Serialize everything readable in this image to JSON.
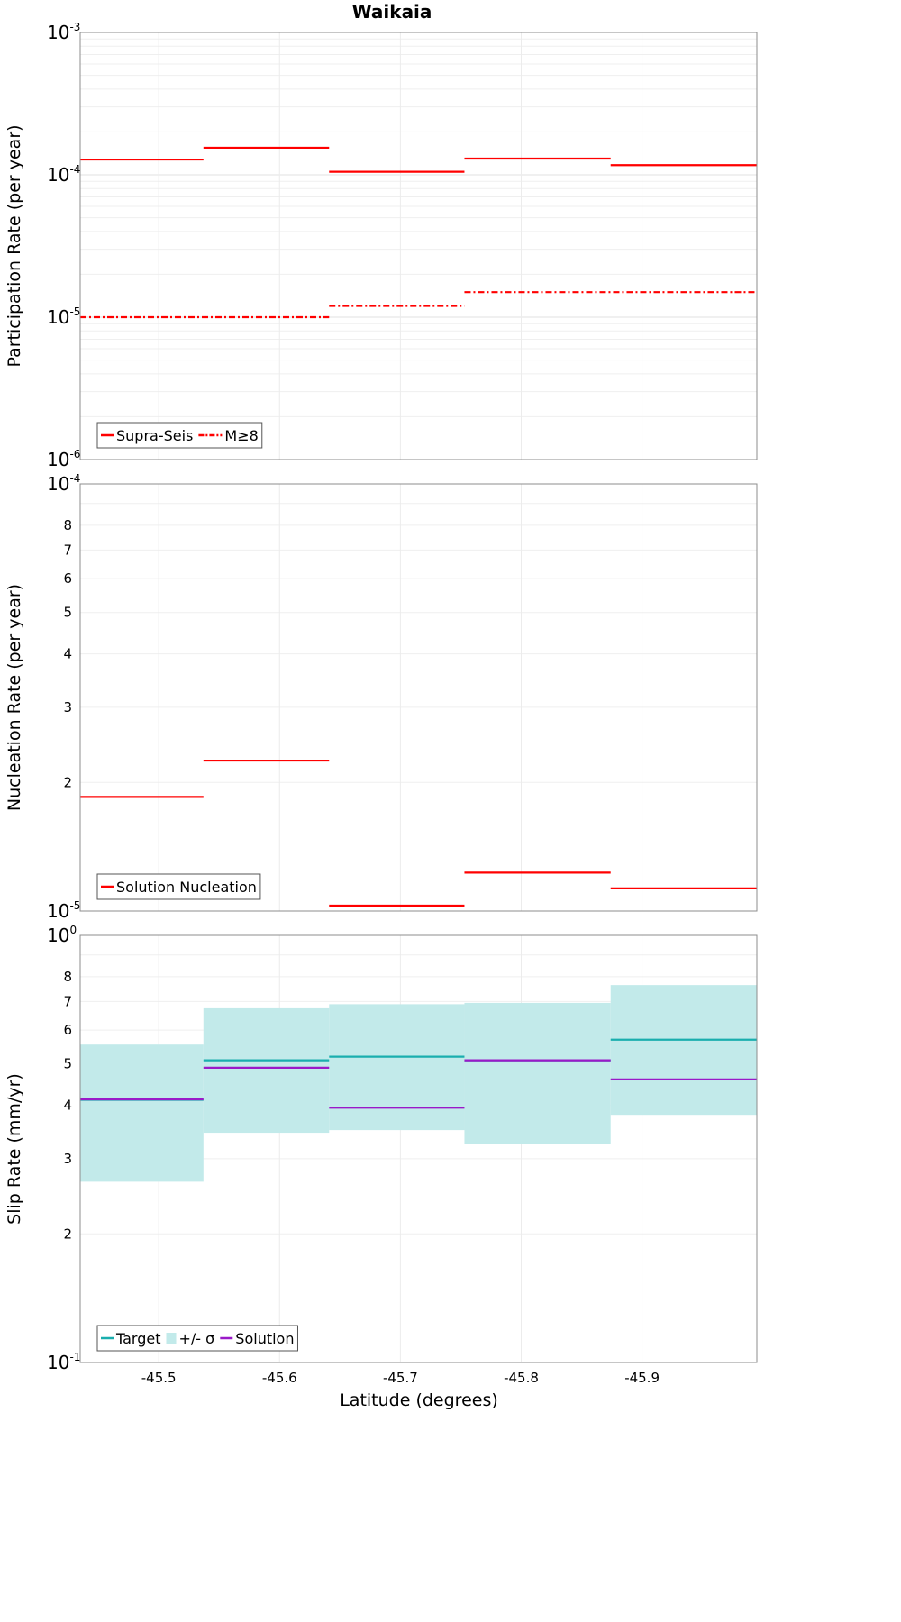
{
  "chart_data": [
    {
      "type": "line",
      "title": "Waikaia",
      "ylabel": "Participation Rate (per year)",
      "xlabel": "",
      "y_scale": "log",
      "ylim": [
        1e-06,
        0.001
      ],
      "xlim": [
        -45.435,
        -45.995
      ],
      "x_ticks": [
        "-45.5",
        "-45.6",
        "-45.7",
        "-45.8",
        "-45.9"
      ],
      "y_major_labels": [
        {
          "base": "10",
          "exp": "-6"
        },
        {
          "base": "10",
          "exp": "-5"
        },
        {
          "base": "10",
          "exp": "-4"
        },
        {
          "base": "10",
          "exp": "-3"
        }
      ],
      "grid": true,
      "legend_position": "bottom-left",
      "legend": [
        "Supra-Seis",
        "M≥8"
      ],
      "series": [
        {
          "name": "Supra-Seis",
          "color": "#ff0000",
          "style": "solid",
          "segments": [
            {
              "x0": -45.435,
              "x1": -45.537,
              "y": 0.000128
            },
            {
              "x0": -45.537,
              "x1": -45.641,
              "y": 0.000155
            },
            {
              "x0": -45.641,
              "x1": -45.753,
              "y": 0.000105
            },
            {
              "x0": -45.753,
              "x1": -45.874,
              "y": 0.00013
            },
            {
              "x0": -45.874,
              "x1": -45.995,
              "y": 0.000117
            }
          ]
        },
        {
          "name": "M≥8",
          "color": "#ff0000",
          "style": "dashdot",
          "segments": [
            {
              "x0": -45.435,
              "x1": -45.641,
              "y": 1e-05
            },
            {
              "x0": -45.641,
              "x1": -45.753,
              "y": 1.2e-05
            },
            {
              "x0": -45.753,
              "x1": -45.995,
              "y": 1.5e-05
            }
          ]
        }
      ]
    },
    {
      "type": "line",
      "ylabel": "Nucleation Rate (per year)",
      "xlabel": "",
      "y_scale": "log",
      "ylim": [
        1e-05,
        0.0001
      ],
      "xlim": [
        -45.435,
        -45.995
      ],
      "x_ticks": [
        "-45.5",
        "-45.6",
        "-45.7",
        "-45.8",
        "-45.9"
      ],
      "y_major_labels": [
        {
          "base": "10",
          "exp": "-5"
        },
        {
          "base": "10",
          "exp": "-4"
        }
      ],
      "y_minor_labels": [
        "2",
        "3",
        "4",
        "5",
        "6",
        "7",
        "8"
      ],
      "grid": true,
      "legend_position": "bottom-left",
      "legend": [
        "Solution Nucleation"
      ],
      "series": [
        {
          "name": "Solution Nucleation",
          "color": "#ff0000",
          "style": "solid",
          "segments": [
            {
              "x0": -45.435,
              "x1": -45.537,
              "y": 1.85e-05
            },
            {
              "x0": -45.537,
              "x1": -45.641,
              "y": 2.25e-05
            },
            {
              "x0": -45.641,
              "x1": -45.753,
              "y": 1.03e-05
            },
            {
              "x0": -45.753,
              "x1": -45.874,
              "y": 1.23e-05
            },
            {
              "x0": -45.874,
              "x1": -45.995,
              "y": 1.13e-05
            }
          ]
        }
      ]
    },
    {
      "type": "area",
      "ylabel": "Slip Rate (mm/yr)",
      "xlabel": "Latitude (degrees)",
      "y_scale": "log",
      "ylim": [
        0.1,
        1.0
      ],
      "xlim": [
        -45.435,
        -45.995
      ],
      "x_ticks": [
        "-45.5",
        "-45.6",
        "-45.7",
        "-45.8",
        "-45.9"
      ],
      "y_major_labels": [
        {
          "base": "10",
          "exp": "-1"
        },
        {
          "base": "10",
          "exp": "0"
        }
      ],
      "y_minor_labels": [
        "2",
        "3",
        "4",
        "5",
        "6",
        "7",
        "8"
      ],
      "grid": true,
      "legend_position": "bottom-left",
      "legend": [
        "Target",
        "+/- σ",
        "Solution"
      ],
      "band": {
        "name": "+/- σ",
        "color": "#c2eaea",
        "segments": [
          {
            "x0": -45.435,
            "x1": -45.537,
            "lo": 0.265,
            "hi": 0.555
          },
          {
            "x0": -45.537,
            "x1": -45.641,
            "lo": 0.345,
            "hi": 0.675
          },
          {
            "x0": -45.641,
            "x1": -45.753,
            "lo": 0.35,
            "hi": 0.69
          },
          {
            "x0": -45.753,
            "x1": -45.874,
            "lo": 0.325,
            "hi": 0.695
          },
          {
            "x0": -45.874,
            "x1": -45.995,
            "lo": 0.38,
            "hi": 0.765
          }
        ]
      },
      "series": [
        {
          "name": "Target",
          "color": "#1aaeae",
          "style": "solid",
          "segments": [
            {
              "x0": -45.435,
              "x1": -45.537,
              "y": 0.412
            },
            {
              "x0": -45.537,
              "x1": -45.641,
              "y": 0.51
            },
            {
              "x0": -45.641,
              "x1": -45.753,
              "y": 0.52
            },
            {
              "x0": -45.753,
              "x1": -45.874,
              "y": 0.51
            },
            {
              "x0": -45.874,
              "x1": -45.995,
              "y": 0.57
            }
          ]
        },
        {
          "name": "Solution",
          "color": "#9a1ac8",
          "style": "solid",
          "segments": [
            {
              "x0": -45.435,
              "x1": -45.537,
              "y": 0.413
            },
            {
              "x0": -45.537,
              "x1": -45.641,
              "y": 0.49
            },
            {
              "x0": -45.641,
              "x1": -45.753,
              "y": 0.395
            },
            {
              "x0": -45.753,
              "x1": -45.874,
              "y": 0.51
            },
            {
              "x0": -45.874,
              "x1": -45.995,
              "y": 0.46
            }
          ]
        }
      ]
    }
  ]
}
